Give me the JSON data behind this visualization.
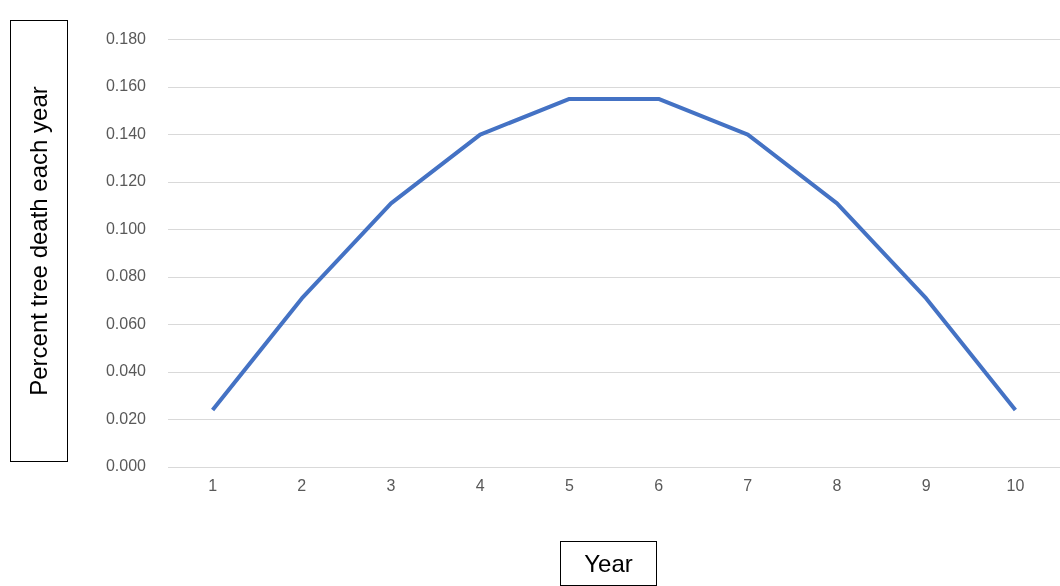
{
  "chart_data": {
    "type": "line",
    "xlabel": "Year",
    "ylabel": "Percent tree death each year",
    "categories": [
      "1",
      "2",
      "3",
      "4",
      "5",
      "6",
      "7",
      "8",
      "9",
      "10"
    ],
    "series": [
      {
        "color": "#4472c4",
        "values": [
          0.024,
          0.071,
          0.111,
          0.14,
          0.155,
          0.155,
          0.14,
          0.111,
          0.071,
          0.024
        ]
      }
    ],
    "ylim": [
      0,
      0.18
    ],
    "yticks": [
      {
        "value": 0,
        "label": "0.000"
      },
      {
        "value": 0.02,
        "label": "0.020"
      },
      {
        "value": 0.04,
        "label": "0.040"
      },
      {
        "value": 0.06,
        "label": "0.060"
      },
      {
        "value": 0.08,
        "label": "0.080"
      },
      {
        "value": 0.1,
        "label": "0.100"
      },
      {
        "value": 0.12,
        "label": "0.120"
      },
      {
        "value": 0.14,
        "label": "0.140"
      },
      {
        "value": 0.16,
        "label": "0.160"
      },
      {
        "value": 0.18,
        "label": "0.180"
      }
    ],
    "grid": "y",
    "legend": false,
    "marker": "none",
    "line_style": "solid"
  }
}
